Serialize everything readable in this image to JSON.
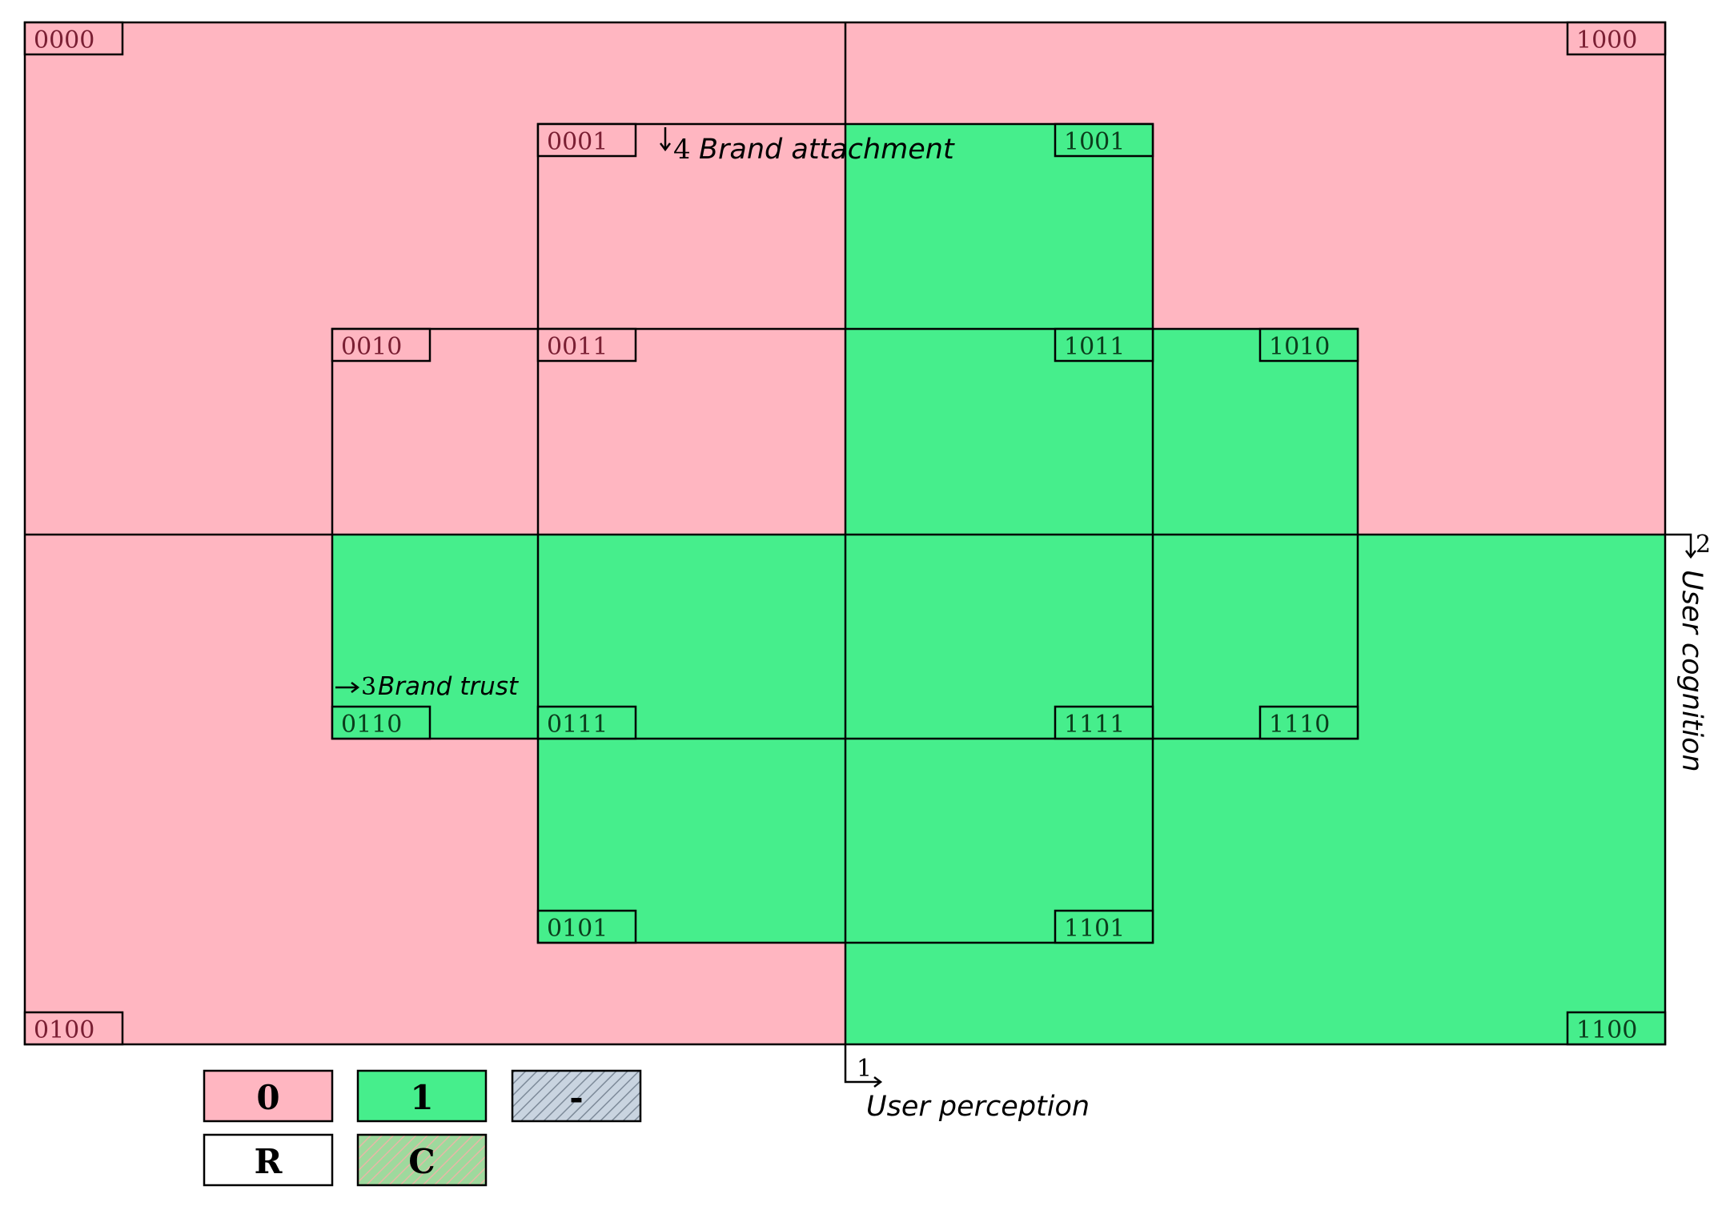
{
  "colors": {
    "zero": "#FFB6C1",
    "one": "#46EE8C",
    "dash": "#C9D4E0",
    "remainder": "#FFFFFF",
    "contradiction": "#9ED99D",
    "line": "#000000",
    "tag_text_zero": "#7A1F33",
    "tag_text_one": "#0B3D1C"
  },
  "cells": {
    "c0000": {
      "code": "0000",
      "value": 0
    },
    "c1000": {
      "code": "1000",
      "value": 0
    },
    "c0001": {
      "code": "0001",
      "value": 0
    },
    "c1001": {
      "code": "1001",
      "value": 1
    },
    "c0010": {
      "code": "0010",
      "value": 0
    },
    "c0011": {
      "code": "0011",
      "value": 0
    },
    "c1011": {
      "code": "1011",
      "value": 1
    },
    "c1010": {
      "code": "1010",
      "value": 1
    },
    "c0110": {
      "code": "0110",
      "value": 1
    },
    "c0111": {
      "code": "0111",
      "value": 1
    },
    "c1111": {
      "code": "1111",
      "value": 1
    },
    "c1110": {
      "code": "1110",
      "value": 1
    },
    "c0101": {
      "code": "0101",
      "value": 1
    },
    "c1101": {
      "code": "1101",
      "value": 1
    },
    "c0100": {
      "code": "0100",
      "value": 0
    },
    "c1100": {
      "code": "1100",
      "value": 1
    }
  },
  "conditions": {
    "c1": {
      "number": "1",
      "name": "User perception"
    },
    "c2": {
      "number": "2",
      "name": "User cognition"
    },
    "c3": {
      "number": "3",
      "name": "Brand trust"
    },
    "c4": {
      "number": "4",
      "name": "Brand attachment"
    }
  },
  "legend": {
    "zero": "0",
    "one": "1",
    "dash": "-",
    "remainder": "R",
    "contradiction": "C"
  }
}
